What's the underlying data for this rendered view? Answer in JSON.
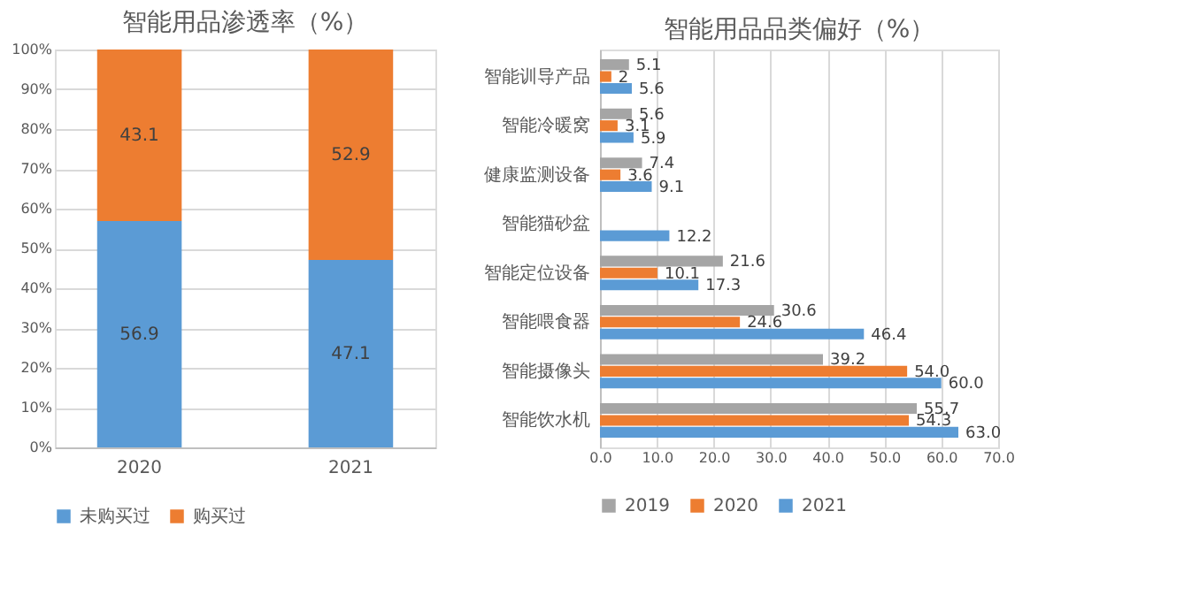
{
  "chart_data": [
    {
      "type": "bar",
      "title": "智能用品渗透率（%）",
      "categories": [
        "2020",
        "2021"
      ],
      "stacked": true,
      "series": [
        {
          "name": "未购买过",
          "color": "#5b9bd5",
          "values": [
            56.9,
            47.1
          ]
        },
        {
          "name": "购买过",
          "color": "#ed7d31",
          "values": [
            43.1,
            52.9
          ]
        }
      ],
      "ylim": [
        0,
        100
      ],
      "yticks": [
        {
          "value": 0,
          "label": "0%"
        },
        {
          "value": 10,
          "label": "10%"
        },
        {
          "value": 20,
          "label": "20%"
        },
        {
          "value": 30,
          "label": "30%"
        },
        {
          "value": 40,
          "label": "40%"
        },
        {
          "value": 50,
          "label": "50%"
        },
        {
          "value": 60,
          "label": "60%"
        },
        {
          "value": 70,
          "label": "70%"
        },
        {
          "value": 80,
          "label": "80%"
        },
        {
          "value": 90,
          "label": "90%"
        },
        {
          "value": 100,
          "label": "100%"
        }
      ],
      "grid": "y",
      "legend": "bottom",
      "data_labels": true
    },
    {
      "type": "bar",
      "title": "智能用品品类偏好（%）",
      "orientation": "horizontal",
      "categories": [
        "智能训导产品",
        "智能冷暖窝",
        "健康监测设备",
        "智能猫砂盆",
        "智能定位设备",
        "智能喂食器",
        "智能摄像头",
        "智能饮水机"
      ],
      "series": [
        {
          "name": "2019",
          "color": "#a5a5a5",
          "values": [
            5.1,
            5.6,
            7.4,
            null,
            21.6,
            30.6,
            39.2,
            55.7
          ],
          "value_labels": [
            "5.1",
            "5.6",
            "7.4",
            null,
            "21.6",
            "30.6",
            "39.2",
            "55.7"
          ]
        },
        {
          "name": "2020",
          "color": "#ed7d31",
          "values": [
            2,
            3.1,
            3.6,
            null,
            10.1,
            24.6,
            54.0,
            54.3
          ],
          "value_labels": [
            "2",
            "3.1",
            "3.6",
            null,
            "10.1",
            "24.6",
            "54.0",
            "54.3"
          ]
        },
        {
          "name": "2021",
          "color": "#5b9bd5",
          "values": [
            5.6,
            5.9,
            9.1,
            12.2,
            17.3,
            46.4,
            60.0,
            63.0
          ],
          "value_labels": [
            "5.6",
            "5.9",
            "9.1",
            "12.2",
            "17.3",
            "46.4",
            "60.0",
            "63.0"
          ]
        }
      ],
      "xlim": [
        0,
        70
      ],
      "xticks": [
        {
          "value": 0,
          "label": "0.0"
        },
        {
          "value": 10,
          "label": "10.0"
        },
        {
          "value": 20,
          "label": "20.0"
        },
        {
          "value": 30,
          "label": "30.0"
        },
        {
          "value": 40,
          "label": "40.0"
        },
        {
          "value": 50,
          "label": "50.0"
        },
        {
          "value": 60,
          "label": "60.0"
        },
        {
          "value": 70,
          "label": "70.0"
        }
      ],
      "grid": "x",
      "legend": "bottom"
    }
  ]
}
